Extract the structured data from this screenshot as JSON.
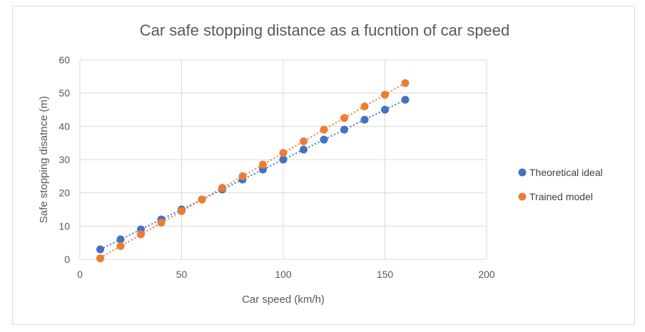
{
  "chart_data": {
    "type": "scatter",
    "title": "Car safe stopping distance as a fucntion of car speed",
    "xlabel": "Car speed (km/h)",
    "ylabel": "Safe stopping disatnce (m)",
    "xlim": [
      0,
      200
    ],
    "ylim": [
      0,
      60
    ],
    "xticks": [
      0,
      50,
      100,
      150,
      200
    ],
    "yticks": [
      0,
      10,
      20,
      30,
      40,
      50,
      60
    ],
    "grid": true,
    "legend_position": "right",
    "series": [
      {
        "name": "Theoretical ideal",
        "color": "#4472c4",
        "trendline": "linear",
        "x": [
          10,
          20,
          30,
          40,
          50,
          60,
          70,
          80,
          90,
          100,
          110,
          120,
          130,
          140,
          150,
          160
        ],
        "y": [
          3,
          6,
          9,
          12,
          15,
          18,
          21,
          24,
          27,
          30,
          33,
          36,
          39,
          42,
          45,
          48
        ]
      },
      {
        "name": "Trained model",
        "color": "#ed7d31",
        "trendline": "linear",
        "x": [
          10,
          20,
          30,
          40,
          50,
          60,
          70,
          80,
          90,
          100,
          110,
          120,
          130,
          140,
          150,
          160
        ],
        "y": [
          0.3,
          4,
          7.5,
          11,
          14.5,
          18,
          21.5,
          25,
          28.5,
          32,
          35.5,
          39,
          42.5,
          46,
          49.5,
          53
        ]
      }
    ]
  }
}
